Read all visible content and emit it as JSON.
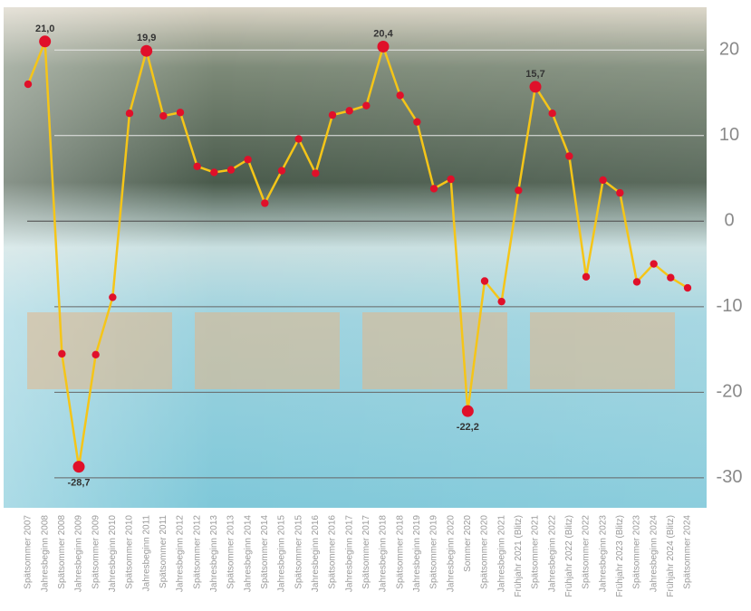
{
  "chart_data": {
    "type": "line",
    "categories": [
      "Spätsommer 2007",
      "Jahresbeginn 2008",
      "Spätsommer 2008",
      "Jahresbeginn 2009",
      "Spätsommer 2009",
      "Jahresbeginn 2010",
      "Spätsommer 2010",
      "Jahresbeginn 2011",
      "Spätsommer 2011",
      "Jahresbeginn 2012",
      "Spätsommer 2012",
      "Jahresbeginn 2013",
      "Spätsommer 2013",
      "Jahresbeginn 2014",
      "Spätsommer 2014",
      "Jahresbeginn 2015",
      "Spätsommer 2015",
      "Jahresbeginn 2016",
      "Spätsommer 2016",
      "Jahresbeginn 2017",
      "Spätsommer 2017",
      "Jahresbeginn 2018",
      "Spätsommer 2018",
      "Jahresbeginn 2019",
      "Spätsommer 2019",
      "Jahresbeginn 2020",
      "Sommer 2020",
      "Spätsommer 2020",
      "Jahresbeginn 2021",
      "Frühjahr 2021 (Blitz)",
      "Spätsommer 2021",
      "Jahresbeginn 2022",
      "Frühjahr 2022 (Blitz)",
      "Spätsommer 2022",
      "Jahresbeginn 2023",
      "Frühjahr 2023 (Blitz)",
      "Spätsommer 2023",
      "Jahresbeginn 2024",
      "Frühjahr 2024 (Blitz)",
      "Spätsommer 2024"
    ],
    "values": [
      16.0,
      21.0,
      -15.5,
      -28.7,
      -15.6,
      -8.9,
      12.6,
      19.9,
      12.3,
      12.7,
      6.4,
      5.7,
      6.0,
      7.2,
      2.1,
      5.9,
      9.6,
      5.6,
      12.4,
      12.9,
      13.5,
      20.4,
      14.7,
      11.6,
      3.8,
      4.9,
      -22.2,
      -7.0,
      -9.4,
      3.6,
      15.7,
      12.6,
      7.6,
      -6.5,
      4.8,
      3.3,
      -7.1,
      -5.0,
      -6.6,
      -7.8
    ],
    "value_labels": [
      null,
      "21,0",
      null,
      "-28,7",
      null,
      null,
      null,
      "19,9",
      null,
      null,
      null,
      null,
      null,
      null,
      null,
      null,
      null,
      null,
      null,
      null,
      null,
      "20,4",
      null,
      null,
      null,
      null,
      "-22,2",
      null,
      null,
      null,
      "15,7",
      null,
      null,
      null,
      null,
      null,
      null,
      null,
      null,
      null
    ],
    "color": "#f5c518",
    "marker_color": "#e0102a",
    "ylim": [
      -33.5,
      25
    ],
    "yticks": [
      -30,
      -20,
      -10,
      0,
      10,
      20
    ],
    "grid": true
  }
}
